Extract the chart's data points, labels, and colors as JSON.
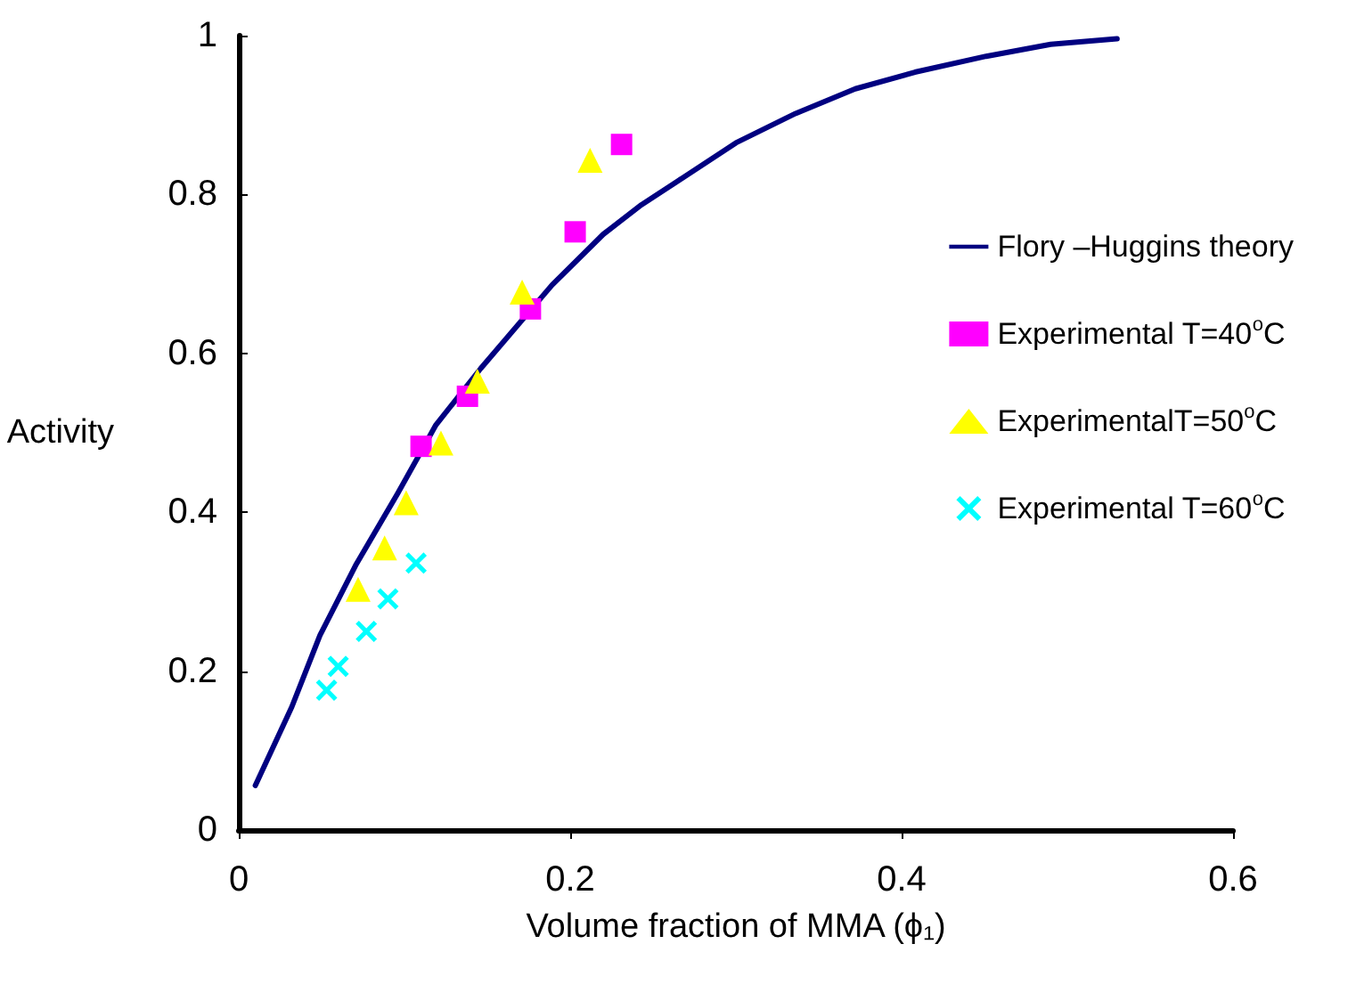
{
  "chart_data": {
    "type": "scatter",
    "xlabel": "Volume fraction of MMA (ϕ₁)",
    "ylabel": "Activity",
    "xlim": [
      0,
      0.6
    ],
    "xticks": [
      0,
      0.2,
      0.4,
      0.6
    ],
    "ylim": [
      0,
      1
    ],
    "yticks": [
      0,
      0.2,
      0.4,
      0.6,
      0.8,
      1
    ],
    "grid": false,
    "legend": "right",
    "series": [
      {
        "name": "Flory –Huggins theory",
        "type": "line",
        "color": "#000080",
        "marker": "none",
        "line_style": "solid",
        "x": [
          0.01,
          0.032,
          0.049,
          0.071,
          0.096,
          0.119,
          0.146,
          0.189,
          0.22,
          0.243,
          0.265,
          0.3,
          0.336,
          0.372,
          0.408,
          0.451,
          0.49,
          0.53
        ],
        "values": [
          0.056,
          0.155,
          0.245,
          0.335,
          0.424,
          0.51,
          0.581,
          0.686,
          0.75,
          0.787,
          0.817,
          0.865,
          0.902,
          0.933,
          0.954,
          0.974,
          0.989,
          0.996
        ]
      },
      {
        "name": "Experimental T=40$^{o}$C",
        "type": "scatter",
        "color": "#ff00ff",
        "marker": "square",
        "x": [
          0.11,
          0.138,
          0.176,
          0.203,
          0.231
        ],
        "values": [
          0.483,
          0.546,
          0.656,
          0.753,
          0.863
        ]
      },
      {
        "name": "ExperimentalT=50$^{o}$C",
        "type": "scatter",
        "color": "#ffff00",
        "marker": "triangle",
        "x": [
          0.072,
          0.088,
          0.101,
          0.122,
          0.144,
          0.171,
          0.212
        ],
        "values": [
          0.303,
          0.355,
          0.412,
          0.487,
          0.565,
          0.677,
          0.843
        ]
      },
      {
        "name": "Experimental T=60$^{o}$C",
        "type": "scatter",
        "color": "#00ffff",
        "marker": "cross",
        "x": [
          0.053,
          0.06,
          0.077,
          0.09,
          0.107
        ],
        "values": [
          0.176,
          0.206,
          0.25,
          0.291,
          0.336
        ]
      }
    ]
  }
}
